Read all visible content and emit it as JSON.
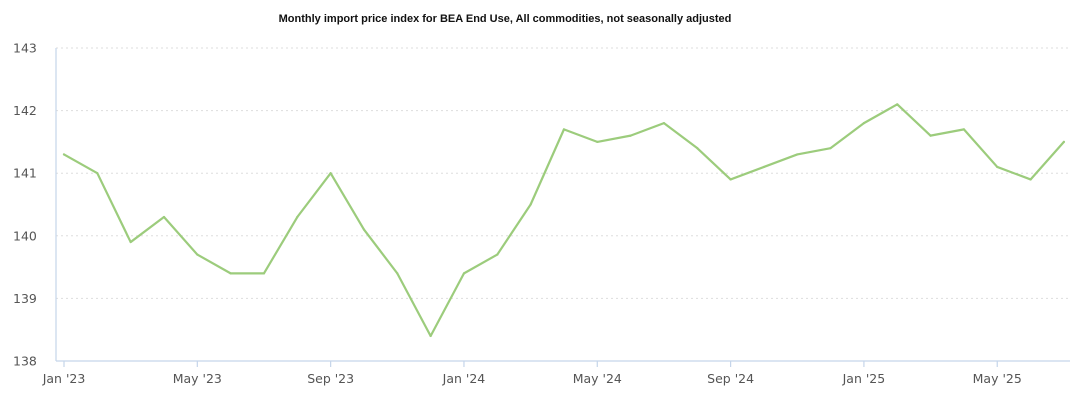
{
  "chart_data": {
    "type": "line",
    "title": "Monthly import price index for BEA End Use, All commodities, not seasonally adjusted",
    "xlabel": "",
    "ylabel": "",
    "ylim": [
      138,
      143
    ],
    "y_ticks": [
      "138",
      "139",
      "140",
      "141",
      "142",
      "143"
    ],
    "x_tick_labels": [
      "Jan '23",
      "May '23",
      "Sep '23",
      "Jan '24",
      "May '24",
      "Sep '24",
      "Jan '25",
      "May '25"
    ],
    "x": [
      "2023-01",
      "2023-02",
      "2023-03",
      "2023-04",
      "2023-05",
      "2023-06",
      "2023-07",
      "2023-08",
      "2023-09",
      "2023-10",
      "2023-11",
      "2023-12",
      "2024-01",
      "2024-02",
      "2024-03",
      "2024-04",
      "2024-05",
      "2024-06",
      "2024-07",
      "2024-08",
      "2024-09",
      "2024-10",
      "2024-11",
      "2024-12",
      "2025-01",
      "2025-02",
      "2025-03",
      "2025-04",
      "2025-05",
      "2025-06",
      "2025-07"
    ],
    "series": [
      {
        "values": [
          141.3,
          141.0,
          139.9,
          140.3,
          139.7,
          139.4,
          139.4,
          140.3,
          141.0,
          140.1,
          139.4,
          138.4,
          139.4,
          139.7,
          140.5,
          141.7,
          141.5,
          141.6,
          141.8,
          141.4,
          140.9,
          141.1,
          141.3,
          141.4,
          141.8,
          142.1,
          141.6,
          141.7,
          141.1,
          140.9,
          141.5
        ],
        "color": "#9ccc7c"
      }
    ],
    "grid": "horizontal dotted",
    "legend": "none",
    "colors": {
      "axis": "#c5d5ea",
      "grid": "#dddddd"
    }
  }
}
